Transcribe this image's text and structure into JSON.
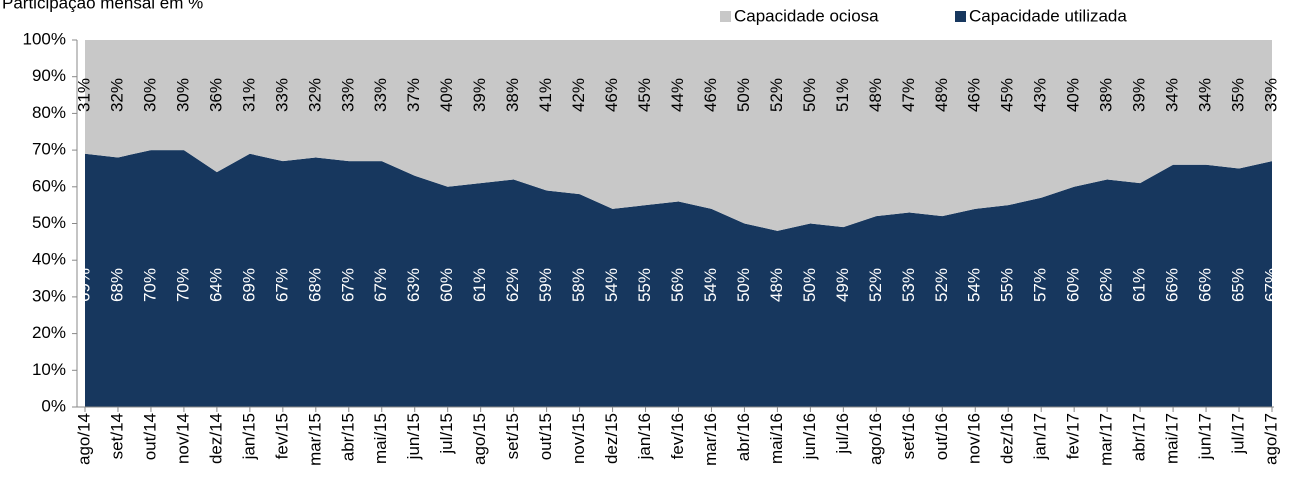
{
  "chart_data": {
    "type": "stacked_area",
    "title": "Participação mensal em %",
    "categories": [
      "ago/14",
      "set/14",
      "out/14",
      "nov/14",
      "dez/14",
      "jan/15",
      "fev/15",
      "mar/15",
      "abr/15",
      "mai/15",
      "jun/15",
      "jul/15",
      "ago/15",
      "set/15",
      "out/15",
      "nov/15",
      "dez/15",
      "jan/16",
      "fev/16",
      "mar/16",
      "abr/16",
      "mai/16",
      "jun/16",
      "jul/16",
      "ago/16",
      "set/16",
      "out/16",
      "nov/16",
      "dez/16",
      "jan/17",
      "fev/17",
      "mar/17",
      "abr/17",
      "mai/17",
      "jun/17",
      "jul/17",
      "ago/17"
    ],
    "series": [
      {
        "name": "Capacidade utilizada",
        "color": "#17375e",
        "values": [
          69,
          68,
          70,
          70,
          64,
          69,
          67,
          68,
          67,
          67,
          63,
          60,
          61,
          62,
          59,
          58,
          54,
          55,
          56,
          54,
          50,
          48,
          50,
          49,
          52,
          53,
          52,
          54,
          55,
          57,
          60,
          62,
          61,
          66,
          66,
          65,
          67
        ],
        "value_labels": [
          "69%",
          "68%",
          "70%",
          "70%",
          "64%",
          "69%",
          "67%",
          "68%",
          "67%",
          "67%",
          "63%",
          "60%",
          "61%",
          "62%",
          "59%",
          "58%",
          "54%",
          "55%",
          "56%",
          "54%",
          "50%",
          "48%",
          "50%",
          "49%",
          "52%",
          "53%",
          "52%",
          "54%",
          "55%",
          "57%",
          "60%",
          "62%",
          "61%",
          "66%",
          "66%",
          "65%",
          "67%"
        ]
      },
      {
        "name": "Capacidade ociosa",
        "color": "#c8c8c8",
        "values": [
          31,
          32,
          30,
          30,
          36,
          31,
          33,
          32,
          33,
          33,
          37,
          40,
          39,
          38,
          41,
          42,
          46,
          45,
          44,
          46,
          50,
          52,
          50,
          51,
          48,
          47,
          48,
          46,
          45,
          43,
          40,
          38,
          39,
          34,
          34,
          35,
          33
        ],
        "value_labels": [
          "31%",
          "32%",
          "30%",
          "30%",
          "36%",
          "31%",
          "33%",
          "32%",
          "33%",
          "33%",
          "37%",
          "40%",
          "39%",
          "38%",
          "41%",
          "42%",
          "46%",
          "45%",
          "44%",
          "46%",
          "50%",
          "52%",
          "50%",
          "51%",
          "48%",
          "47%",
          "48%",
          "46%",
          "45%",
          "43%",
          "40%",
          "38%",
          "39%",
          "34%",
          "34%",
          "35%",
          "33%"
        ]
      }
    ],
    "ylim": [
      0,
      100
    ],
    "yticks": [
      {
        "value": 0,
        "label": "0%"
      },
      {
        "value": 10,
        "label": "10%"
      },
      {
        "value": 20,
        "label": "20%"
      },
      {
        "value": 30,
        "label": "30%"
      },
      {
        "value": 40,
        "label": "40%"
      },
      {
        "value": 50,
        "label": "50%"
      },
      {
        "value": 60,
        "label": "60%"
      },
      {
        "value": 70,
        "label": "70%"
      },
      {
        "value": 80,
        "label": "80%"
      },
      {
        "value": 90,
        "label": "90%"
      },
      {
        "value": 100,
        "label": "100%"
      }
    ]
  }
}
